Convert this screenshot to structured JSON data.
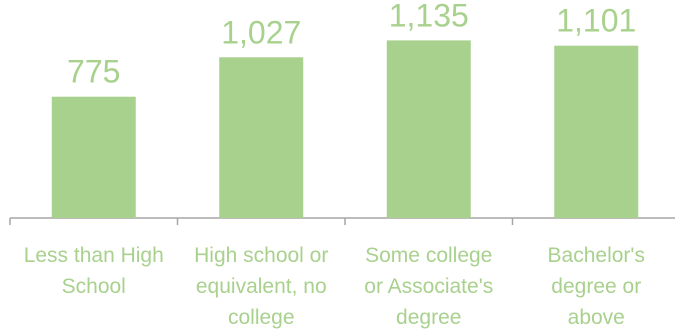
{
  "chart_data": {
    "type": "bar",
    "categories": [
      [
        "Less than High",
        "School"
      ],
      [
        "High school or",
        "equivalent, no",
        "college"
      ],
      [
        "Some college",
        "or Associate's",
        "degree"
      ],
      [
        "Bachelor's",
        "degree or",
        "above"
      ]
    ],
    "values": [
      775,
      1027,
      1135,
      1101
    ],
    "value_labels": [
      "775",
      "1,027",
      "1,135",
      "1,101"
    ],
    "ylim": [
      0,
      1300
    ],
    "grid": false,
    "legend": "none",
    "colors": {
      "bar": "#a9d18e",
      "text": "#a9d18e",
      "axis": "#a6a6a6"
    }
  }
}
